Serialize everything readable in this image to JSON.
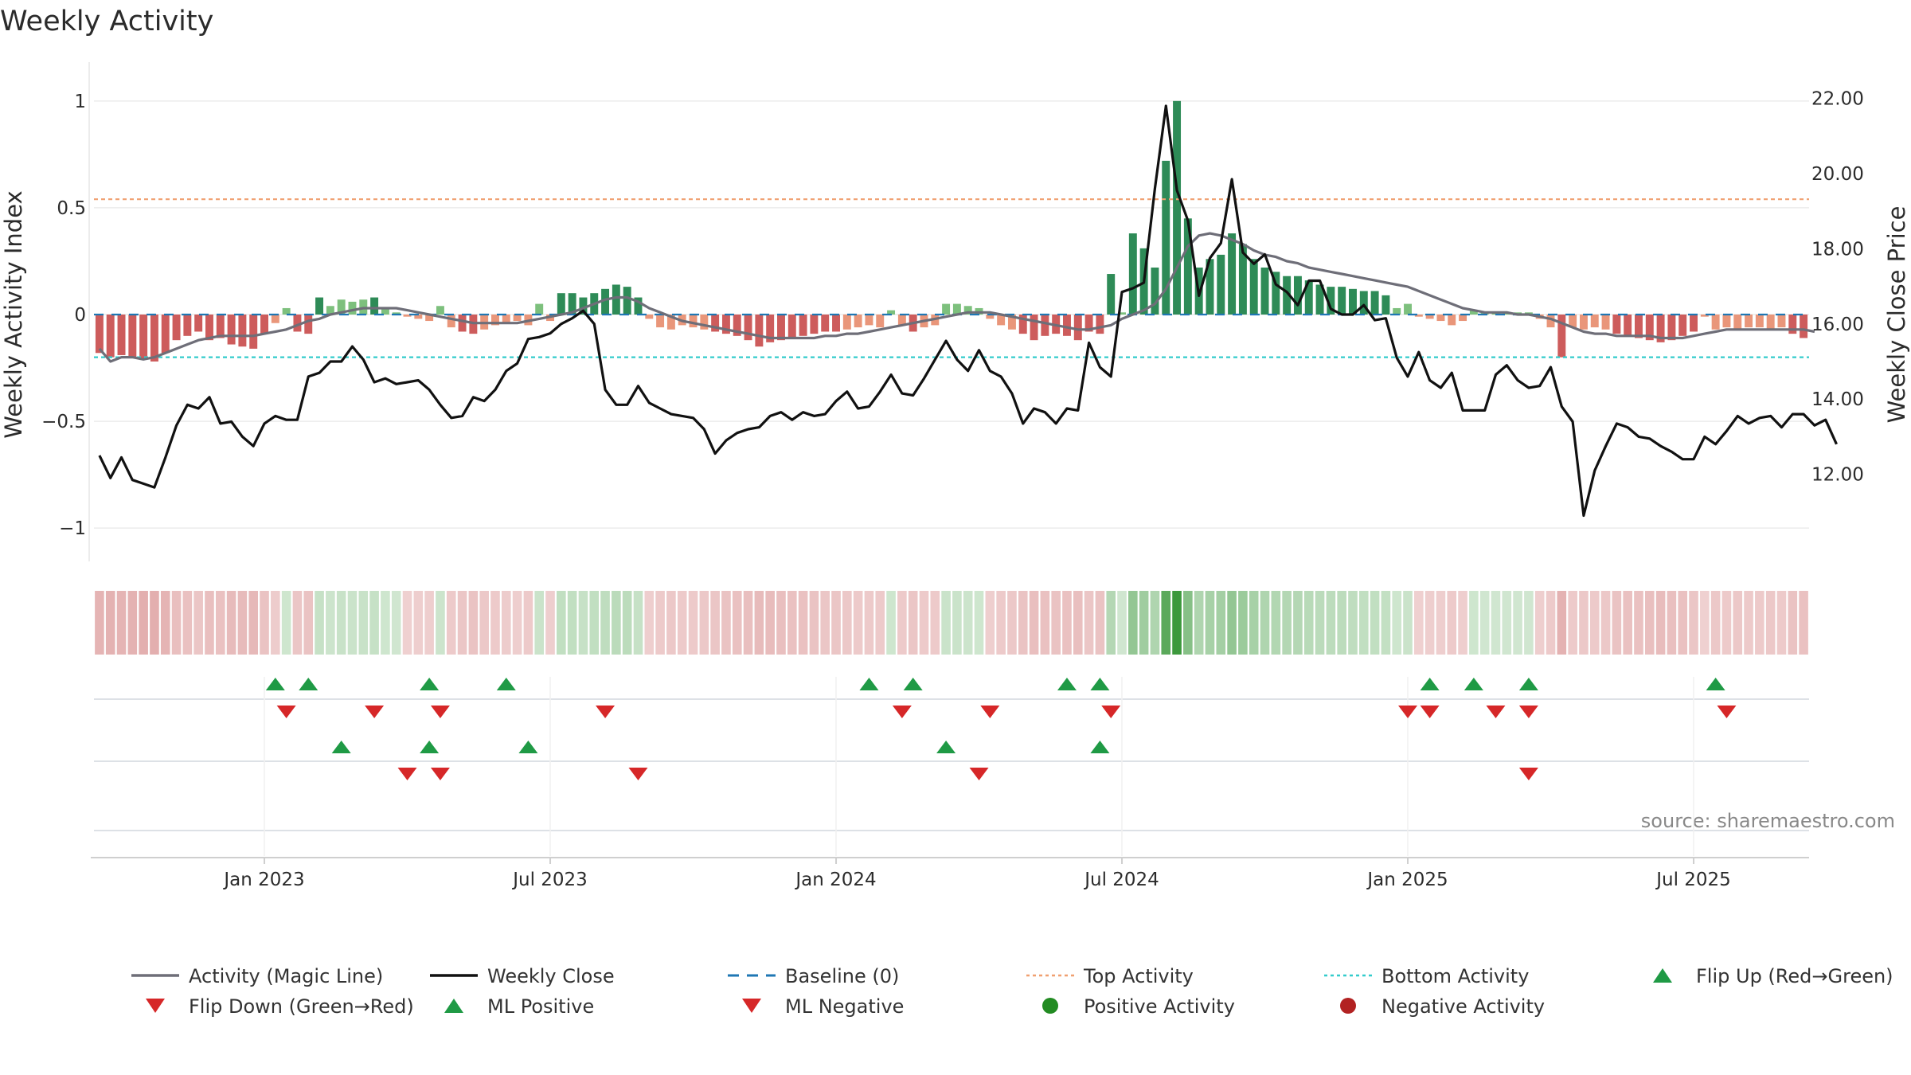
{
  "chart_data": {
    "type": "bar",
    "title": "Weekly Activity",
    "ylabel_left": "Weekly Activity Index",
    "ylabel_right": "Weekly Close Price",
    "ylim_left": [
      -1.1,
      1.1
    ],
    "ylim_right": [
      10.0,
      22.5
    ],
    "left_ticks": [
      "1",
      "0.5",
      "0",
      "−0.5",
      "−1"
    ],
    "left_tick_values": [
      1,
      0.5,
      0,
      -0.5,
      -1
    ],
    "right_ticks": [
      "22.00",
      "20.00",
      "18.00",
      "16.00",
      "14.00",
      "12.00"
    ],
    "right_tick_values": [
      22,
      20,
      18,
      16,
      14,
      12
    ],
    "x_ticks": [
      "Jan 2023",
      "Jul 2023",
      "Jan 2024",
      "Jul 2024",
      "Jan 2025",
      "Jul 2025"
    ],
    "x_tick_weeks": [
      15,
      41,
      67,
      93,
      119,
      145
    ],
    "top_activity": 0.54,
    "bottom_activity": -0.2,
    "baseline": 0,
    "activity_index": [
      -0.18,
      -0.2,
      -0.19,
      -0.2,
      -0.21,
      -0.22,
      -0.18,
      -0.12,
      -0.1,
      -0.08,
      -0.12,
      -0.11,
      -0.14,
      -0.15,
      -0.16,
      -0.09,
      -0.04,
      0.03,
      -0.08,
      -0.09,
      0.08,
      0.04,
      0.07,
      0.06,
      0.07,
      0.08,
      0.03,
      0.01,
      -0.01,
      -0.02,
      -0.03,
      0.04,
      -0.06,
      -0.08,
      -0.09,
      -0.07,
      -0.05,
      -0.04,
      -0.03,
      -0.05,
      0.05,
      -0.03,
      0.1,
      0.1,
      0.08,
      0.1,
      0.12,
      0.14,
      0.13,
      0.08,
      -0.02,
      -0.06,
      -0.07,
      -0.05,
      -0.06,
      -0.07,
      -0.08,
      -0.09,
      -0.1,
      -0.12,
      -0.15,
      -0.13,
      -0.12,
      -0.11,
      -0.1,
      -0.09,
      -0.08,
      -0.08,
      -0.07,
      -0.06,
      -0.05,
      -0.06,
      0.02,
      -0.05,
      -0.08,
      -0.06,
      -0.05,
      0.05,
      0.05,
      0.04,
      0.03,
      -0.02,
      -0.05,
      -0.07,
      -0.09,
      -0.12,
      -0.1,
      -0.09,
      -0.1,
      -0.12,
      -0.08,
      -0.09,
      0.19,
      0.01,
      0.38,
      0.31,
      0.22,
      0.72,
      1.0,
      0.45,
      0.22,
      0.26,
      0.28,
      0.38,
      0.33,
      0.26,
      0.22,
      0.2,
      0.18,
      0.18,
      0.16,
      0.14,
      0.13,
      0.13,
      0.12,
      0.11,
      0.11,
      0.09,
      0.03,
      0.05,
      -0.01,
      -0.02,
      -0.03,
      -0.05,
      -0.03,
      0.02,
      0.01,
      0.01,
      0.01,
      0.01,
      0.01,
      -0.02,
      -0.06,
      -0.2,
      -0.06,
      -0.07,
      -0.06,
      -0.07,
      -0.09,
      -0.1,
      -0.11,
      -0.12,
      -0.13,
      -0.12,
      -0.1,
      -0.08,
      -0.01,
      -0.07,
      -0.06,
      -0.07,
      -0.06,
      -0.06,
      -0.07,
      -0.06,
      -0.09,
      -0.11
    ],
    "magic_line": [
      -0.16,
      -0.22,
      -0.2,
      -0.2,
      -0.21,
      -0.2,
      -0.18,
      -0.16,
      -0.14,
      -0.12,
      -0.11,
      -0.1,
      -0.1,
      -0.1,
      -0.1,
      -0.09,
      -0.08,
      -0.07,
      -0.05,
      -0.03,
      -0.02,
      0.0,
      0.01,
      0.02,
      0.03,
      0.03,
      0.03,
      0.03,
      0.02,
      0.01,
      0.0,
      -0.01,
      -0.02,
      -0.03,
      -0.04,
      -0.04,
      -0.04,
      -0.04,
      -0.04,
      -0.03,
      -0.02,
      -0.01,
      0.0,
      0.01,
      0.03,
      0.05,
      0.07,
      0.08,
      0.08,
      0.06,
      0.03,
      0.01,
      -0.01,
      -0.03,
      -0.04,
      -0.05,
      -0.06,
      -0.07,
      -0.08,
      -0.09,
      -0.1,
      -0.11,
      -0.11,
      -0.11,
      -0.11,
      -0.11,
      -0.1,
      -0.1,
      -0.09,
      -0.09,
      -0.08,
      -0.07,
      -0.06,
      -0.05,
      -0.04,
      -0.03,
      -0.02,
      -0.01,
      0.0,
      0.01,
      0.01,
      0.01,
      0.0,
      -0.01,
      -0.02,
      -0.03,
      -0.04,
      -0.05,
      -0.06,
      -0.07,
      -0.07,
      -0.06,
      -0.05,
      -0.02,
      0.0,
      0.02,
      0.05,
      0.12,
      0.22,
      0.32,
      0.37,
      0.38,
      0.37,
      0.35,
      0.33,
      0.3,
      0.28,
      0.27,
      0.25,
      0.24,
      0.22,
      0.21,
      0.2,
      0.19,
      0.18,
      0.17,
      0.16,
      0.15,
      0.14,
      0.13,
      0.11,
      0.09,
      0.07,
      0.05,
      0.03,
      0.02,
      0.01,
      0.01,
      0.01,
      0.0,
      0.0,
      -0.01,
      -0.02,
      -0.04,
      -0.06,
      -0.08,
      -0.09,
      -0.09,
      -0.1,
      -0.1,
      -0.1,
      -0.1,
      -0.11,
      -0.11,
      -0.11,
      -0.1,
      -0.09,
      -0.08,
      -0.07,
      -0.07,
      -0.07,
      -0.07,
      -0.07,
      -0.07,
      -0.07,
      -0.07,
      -0.08
    ],
    "weekly_close": [
      12.5,
      11.9,
      12.45,
      11.85,
      11.75,
      11.65,
      12.45,
      13.3,
      13.85,
      13.75,
      14.05,
      13.35,
      13.4,
      13.0,
      12.75,
      13.35,
      13.55,
      13.45,
      13.45,
      14.6,
      14.7,
      15.0,
      15.0,
      15.4,
      15.05,
      14.45,
      14.55,
      14.4,
      14.45,
      14.5,
      14.25,
      13.85,
      13.5,
      13.55,
      14.05,
      13.95,
      14.25,
      14.75,
      14.95,
      15.6,
      15.65,
      15.75,
      16.0,
      16.15,
      16.35,
      16.0,
      14.25,
      13.85,
      13.85,
      14.35,
      13.9,
      13.75,
      13.6,
      13.55,
      13.5,
      13.2,
      12.55,
      12.9,
      13.1,
      13.2,
      13.25,
      13.55,
      13.65,
      13.45,
      13.65,
      13.55,
      13.6,
      13.95,
      14.2,
      13.75,
      13.8,
      14.2,
      14.65,
      14.15,
      14.1,
      14.55,
      15.05,
      15.55,
      15.05,
      14.75,
      15.3,
      14.75,
      14.6,
      14.15,
      13.35,
      13.75,
      13.65,
      13.35,
      13.75,
      13.7,
      15.5,
      14.85,
      14.6,
      16.85,
      16.95,
      17.1,
      19.6,
      21.8,
      19.55,
      18.75,
      16.75,
      17.75,
      18.15,
      19.85,
      17.9,
      17.6,
      17.85,
      17.05,
      16.85,
      16.5,
      17.15,
      17.15,
      16.4,
      16.25,
      16.25,
      16.5,
      16.1,
      16.15,
      15.1,
      14.6,
      15.25,
      14.5,
      14.3,
      14.7,
      13.7,
      13.7,
      13.7,
      14.65,
      14.9,
      14.5,
      14.3,
      14.35,
      14.85,
      13.8,
      13.4,
      10.9,
      12.1,
      12.75,
      13.35,
      13.25,
      13.0,
      12.95,
      12.75,
      12.6,
      12.4,
      12.4,
      13.0,
      12.8,
      13.15,
      13.55,
      13.35,
      13.5,
      13.55,
      13.25,
      13.6,
      13.6,
      13.3,
      13.45,
      12.8
    ],
    "flip_up_weeks": [
      16,
      19,
      30,
      37,
      70,
      74,
      88,
      91,
      121,
      125,
      130,
      147
    ],
    "flip_down_weeks": [
      17,
      25,
      31,
      46,
      73,
      81,
      92,
      119,
      121,
      127,
      130,
      148
    ],
    "ml_positive_weeks": [
      22,
      30,
      39,
      77,
      91
    ],
    "ml_negative_weeks": [
      28,
      31,
      49,
      80,
      130
    ],
    "legend": [
      {
        "label": "Activity (Magic Line)",
        "kind": "line",
        "color": "#6e6e78"
      },
      {
        "label": "Weekly Close",
        "kind": "line",
        "color": "#111111"
      },
      {
        "label": "Baseline (0)",
        "kind": "dash",
        "color": "#1f77b4"
      },
      {
        "label": "Top Activity",
        "kind": "dot",
        "color": "#f0a070"
      },
      {
        "label": "Bottom Activity",
        "kind": "dot",
        "color": "#33cccc"
      },
      {
        "label": "Flip Up (Red→Green)",
        "kind": "tri-up",
        "color": "#1f9a45"
      },
      {
        "label": "Flip Down (Green→Red)",
        "kind": "tri-down",
        "color": "#d62728"
      },
      {
        "label": "ML Positive",
        "kind": "tri-up",
        "color": "#1f9a45"
      },
      {
        "label": "ML Negative",
        "kind": "tri-down",
        "color": "#d62728"
      },
      {
        "label": "Positive Activity",
        "kind": "circle",
        "color": "#228b22"
      },
      {
        "label": "Negative Activity",
        "kind": "circle",
        "color": "#b22222"
      }
    ],
    "source": "source: sharemaestro.com"
  },
  "colors": {
    "positive_strong": "#2e8b57",
    "positive_light": "#7dc07d",
    "negative_strong": "#cd5c5c",
    "negative_light": "#e9967a",
    "magic_line": "#6e6e78",
    "close_line": "#111111",
    "baseline": "#1f77b4",
    "top_line": "#f0a070",
    "bottom_line": "#33cccc",
    "flip_up": "#1f9a45",
    "flip_down": "#d62728"
  }
}
